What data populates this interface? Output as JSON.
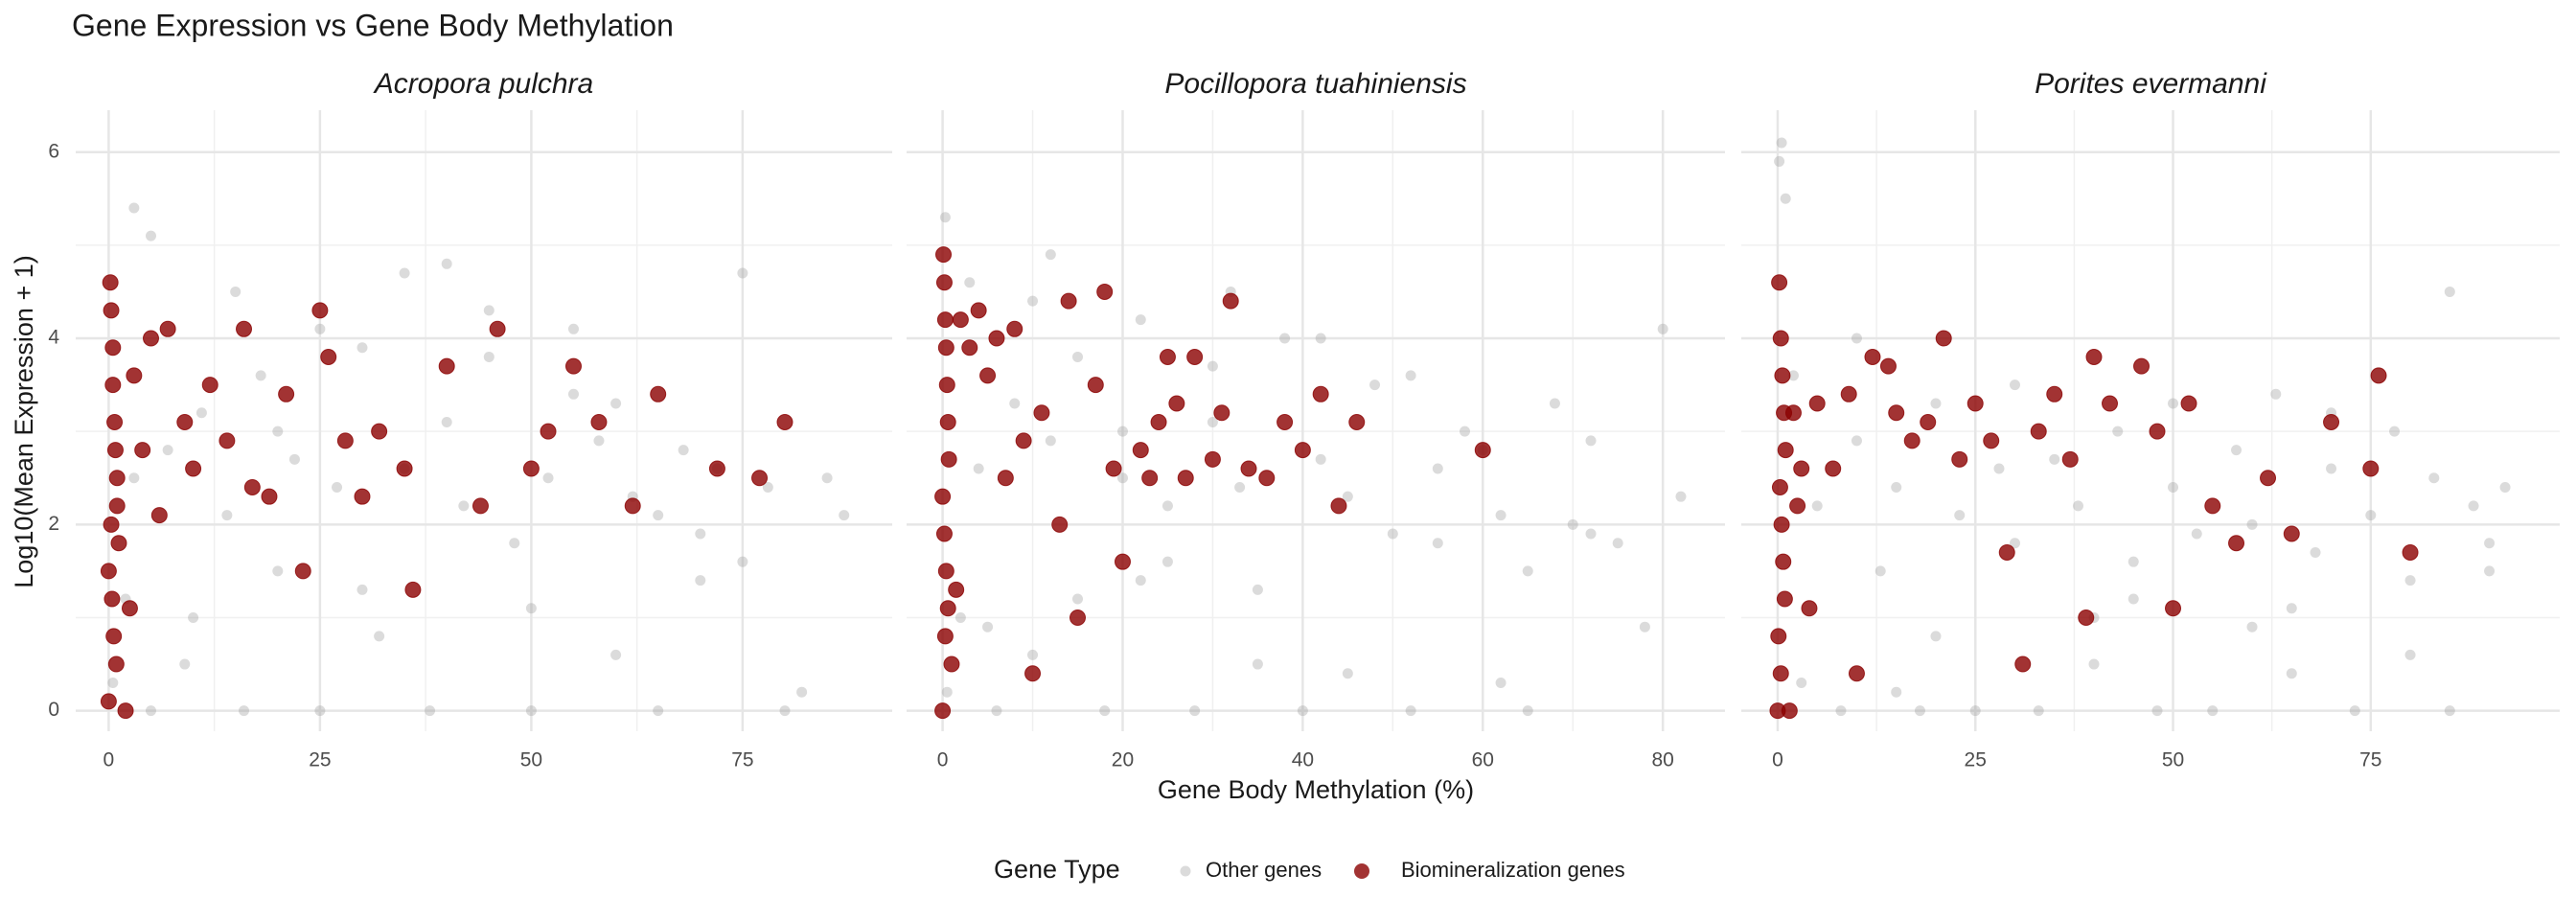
{
  "title": "Gene Expression vs Gene Body Methylation",
  "x_label": "Gene Body Methylation (%)",
  "y_label": "Log10(Mean Expression + 1)",
  "legend_title": "Gene Type",
  "chart_data": [
    {
      "type": "scatter",
      "title": "Acropora pulchra",
      "grid": true,
      "legend": "bottom",
      "xlim": [
        -3.9,
        92.7
      ],
      "ylim": [
        -0.22,
        6.45
      ],
      "xticks": [
        0,
        25,
        50,
        75
      ],
      "yticks": [
        0,
        2,
        4,
        6
      ],
      "series": [
        {
          "name": "Other genes",
          "color": "#999999",
          "alpha": 0.35,
          "x": [
            0.5,
            2,
            3,
            5,
            7,
            9,
            11,
            14,
            16,
            18,
            20,
            22,
            25,
            27,
            30,
            32,
            35,
            38,
            40,
            42,
            45,
            48,
            50,
            52,
            55,
            58,
            60,
            62,
            65,
            68,
            70,
            72,
            75,
            78,
            80,
            85,
            87,
            5,
            15,
            25,
            35,
            45,
            55,
            65,
            75,
            82,
            10,
            30,
            50,
            70,
            3,
            40,
            20,
            60
          ],
          "values": [
            0.3,
            1.2,
            2.5,
            0,
            2.8,
            0.5,
            3.2,
            2.1,
            0,
            3.6,
            1.5,
            2.7,
            0,
            2.4,
            3.9,
            0.8,
            2.6,
            0,
            3.1,
            2.2,
            4.3,
            1.8,
            0,
            2.5,
            3.4,
            2.9,
            0.6,
            2.3,
            0,
            2.8,
            1.9,
            2.6,
            4.7,
            2.4,
            0,
            2.5,
            2.1,
            5.1,
            4.5,
            4.1,
            4.7,
            3.8,
            4.1,
            2.1,
            1.6,
            0.2,
            1.0,
            1.3,
            1.1,
            1.4,
            5.4,
            4.8,
            3.0,
            3.3
          ]
        },
        {
          "name": "Biomineralization genes",
          "color": "#8B0000",
          "alpha": 0.8,
          "x": [
            0,
            0.2,
            0.3,
            0.5,
            0.5,
            0.7,
            0.8,
            1,
            1,
            1.2,
            0,
            0.4,
            0.6,
            0.9,
            2,
            3,
            4,
            5,
            6,
            7,
            9,
            10,
            12,
            14,
            16,
            17,
            19,
            21,
            23,
            25,
            26,
            28,
            30,
            32,
            35,
            36,
            40,
            44,
            46,
            50,
            52,
            55,
            58,
            62,
            65,
            72,
            77,
            80,
            2.5,
            0.3
          ],
          "values": [
            0.1,
            4.6,
            4.3,
            3.9,
            3.5,
            3.1,
            2.8,
            2.5,
            2.2,
            1.8,
            1.5,
            1.2,
            0.8,
            0.5,
            0.0,
            3.6,
            2.8,
            4.0,
            2.1,
            4.1,
            3.1,
            2.6,
            3.5,
            2.9,
            4.1,
            2.4,
            2.3,
            3.4,
            1.5,
            4.3,
            3.8,
            2.9,
            2.3,
            3.0,
            2.6,
            1.3,
            3.7,
            2.2,
            4.1,
            2.6,
            3.0,
            3.7,
            3.1,
            2.2,
            3.4,
            2.6,
            2.5,
            3.1,
            1.1,
            2.0
          ]
        }
      ]
    },
    {
      "type": "scatter",
      "title": "Pocillopora tuahiniensis",
      "grid": true,
      "legend": "bottom",
      "xlim": [
        -4.0,
        86.9
      ],
      "ylim": [
        -0.22,
        6.45
      ],
      "xticks": [
        0,
        20,
        40,
        60,
        80
      ],
      "yticks": [
        0,
        2,
        4,
        6
      ],
      "series": [
        {
          "name": "Other genes",
          "color": "#999999",
          "alpha": 0.35,
          "x": [
            0.5,
            2,
            4,
            6,
            8,
            10,
            12,
            15,
            18,
            20,
            22,
            25,
            28,
            30,
            33,
            35,
            38,
            40,
            42,
            45,
            48,
            50,
            52,
            55,
            58,
            60,
            62,
            65,
            68,
            70,
            72,
            75,
            78,
            80,
            82,
            3,
            12,
            22,
            32,
            42,
            52,
            62,
            72,
            5,
            15,
            25,
            35,
            45,
            55,
            0.3,
            10,
            20,
            30,
            65
          ],
          "values": [
            0.2,
            1.0,
            2.6,
            0,
            3.3,
            0.6,
            2.9,
            3.8,
            0,
            2.5,
            1.4,
            2.2,
            0,
            3.1,
            2.4,
            0.5,
            4.0,
            0,
            2.7,
            2.3,
            3.5,
            1.9,
            0,
            2.6,
            3.0,
            2.8,
            2.1,
            0,
            3.3,
            2.0,
            2.9,
            1.8,
            0.9,
            4.1,
            2.3,
            4.6,
            4.9,
            4.2,
            4.5,
            4.0,
            3.6,
            0.3,
            1.9,
            0.9,
            1.2,
            1.6,
            1.3,
            0.4,
            1.8,
            5.3,
            4.4,
            3.0,
            3.7,
            1.5
          ]
        },
        {
          "name": "Biomineralization genes",
          "color": "#8B0000",
          "alpha": 0.8,
          "x": [
            0,
            0.1,
            0.2,
            0.3,
            0.4,
            0.5,
            0.6,
            0.7,
            0,
            0.2,
            0.4,
            0.6,
            1,
            2,
            3,
            4,
            5,
            6,
            7,
            8,
            9,
            10,
            11,
            13,
            14,
            15,
            17,
            18,
            19,
            20,
            22,
            23,
            24,
            25,
            26,
            27,
            28,
            30,
            31,
            32,
            34,
            36,
            38,
            40,
            42,
            44,
            46,
            60,
            1.5,
            0.3
          ],
          "values": [
            0.0,
            4.9,
            4.6,
            4.2,
            3.9,
            3.5,
            3.1,
            2.7,
            2.3,
            1.9,
            1.5,
            1.1,
            0.5,
            4.2,
            3.9,
            4.3,
            3.6,
            4.0,
            2.5,
            4.1,
            2.9,
            0.4,
            3.2,
            2.0,
            4.4,
            1.0,
            3.5,
            4.5,
            2.6,
            1.6,
            2.8,
            2.5,
            3.1,
            3.8,
            3.3,
            2.5,
            3.8,
            2.7,
            3.2,
            4.4,
            2.6,
            2.5,
            3.1,
            2.8,
            3.4,
            2.2,
            3.1,
            2.8,
            1.3,
            0.8
          ]
        }
      ]
    },
    {
      "type": "scatter",
      "title": "Porites evermanni",
      "grid": true,
      "legend": "bottom",
      "xlim": [
        -4.6,
        98.9
      ],
      "ylim": [
        -0.22,
        6.45
      ],
      "xticks": [
        0,
        25,
        50,
        75
      ],
      "yticks": [
        0,
        2,
        4,
        6
      ],
      "series": [
        {
          "name": "Other genes",
          "color": "#999999",
          "alpha": 0.35,
          "x": [
            0.5,
            3,
            5,
            8,
            10,
            13,
            15,
            18,
            20,
            23,
            25,
            28,
            30,
            33,
            35,
            38,
            40,
            43,
            45,
            48,
            50,
            53,
            55,
            58,
            60,
            63,
            65,
            68,
            70,
            73,
            75,
            78,
            80,
            83,
            85,
            88,
            90,
            92,
            0.2,
            1,
            2,
            10,
            30,
            50,
            70,
            85,
            20,
            40,
            60,
            80,
            15,
            45,
            65,
            90
          ],
          "values": [
            6.1,
            0.3,
            2.2,
            0,
            2.9,
            1.5,
            2.4,
            0,
            3.3,
            2.1,
            0,
            2.6,
            1.8,
            0,
            2.7,
            2.2,
            0.5,
            3.0,
            1.6,
            0,
            2.4,
            1.9,
            0,
            2.8,
            2.0,
            3.4,
            0.4,
            1.7,
            2.6,
            0,
            2.1,
            3.0,
            1.4,
            2.5,
            0,
            2.2,
            1.8,
            2.4,
            5.9,
            5.5,
            3.6,
            4.0,
            3.5,
            3.3,
            3.2,
            4.5,
            0.8,
            1.0,
            0.9,
            0.6,
            0.2,
            1.2,
            1.1,
            1.5
          ]
        },
        {
          "name": "Biomineralization genes",
          "color": "#8B0000",
          "alpha": 0.8,
          "x": [
            0,
            0.2,
            0.4,
            0.6,
            0.8,
            1,
            0.3,
            0.5,
            0.7,
            0.9,
            0.1,
            0.4,
            1.5,
            2,
            3,
            4,
            5,
            7,
            9,
            10,
            12,
            14,
            15,
            17,
            19,
            21,
            23,
            25,
            27,
            29,
            31,
            33,
            35,
            37,
            39,
            40,
            42,
            46,
            48,
            50,
            52,
            55,
            58,
            62,
            65,
            70,
            75,
            76,
            80,
            2.5
          ],
          "values": [
            0.0,
            4.6,
            4.0,
            3.6,
            3.2,
            2.8,
            2.4,
            2.0,
            1.6,
            1.2,
            0.8,
            0.4,
            0.0,
            3.2,
            2.6,
            1.1,
            3.3,
            2.6,
            3.4,
            0.4,
            3.8,
            3.7,
            3.2,
            2.9,
            3.1,
            4.0,
            2.7,
            3.3,
            2.9,
            1.7,
            0.5,
            3.0,
            3.4,
            2.7,
            1.0,
            3.8,
            3.3,
            3.7,
            3.0,
            1.1,
            3.3,
            2.2,
            1.8,
            2.5,
            1.9,
            3.1,
            2.6,
            3.6,
            1.7,
            2.2
          ]
        }
      ]
    }
  ]
}
